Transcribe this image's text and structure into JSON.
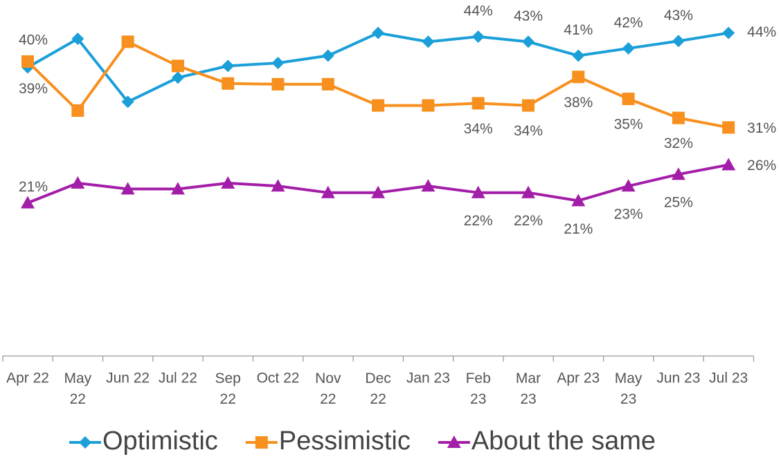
{
  "chart_data": {
    "type": "line",
    "categories": [
      "Apr 22",
      "May 22",
      "Jun 22",
      "Jul 22",
      "Sep 22",
      "Oct 22",
      "Nov 22",
      "Dec 22",
      "Jan 23",
      "Feb 23",
      "Mar 23",
      "Apr 23",
      "May 23",
      "Jun 23",
      "Jul 23"
    ],
    "ylim": [
      0,
      48.6
    ],
    "legend": "bottom",
    "series": [
      {
        "name": "Optimistic",
        "color": "#1b9fd8",
        "marker": "diamond",
        "values": [
          39.4,
          43.3,
          34.7,
          38.0,
          39.6,
          40.0,
          41.0,
          44.1,
          42.9,
          43.6,
          42.9,
          41.0,
          42.0,
          43.0,
          44.1
        ],
        "value_labels": [
          "39%",
          null,
          null,
          null,
          null,
          null,
          null,
          null,
          null,
          "44%",
          "43%",
          "41%",
          "42%",
          "43%",
          "44%"
        ]
      },
      {
        "name": "Pessimistic",
        "color": "#f7901e",
        "marker": "square",
        "values": [
          40.2,
          33.5,
          42.9,
          39.6,
          37.2,
          37.1,
          37.1,
          34.2,
          34.2,
          34.5,
          34.2,
          38.1,
          35.1,
          32.5,
          31.2
        ],
        "value_labels": [
          "40%",
          null,
          null,
          null,
          null,
          null,
          null,
          null,
          null,
          "34%",
          "34%",
          "38%",
          "35%",
          "32%",
          "31%"
        ]
      },
      {
        "name": "About the same",
        "color": "#a31ea8",
        "marker": "triangle",
        "values": [
          20.9,
          23.6,
          22.8,
          22.8,
          23.6,
          23.2,
          22.3,
          22.3,
          23.2,
          22.3,
          22.3,
          21.2,
          23.2,
          24.8,
          26.1
        ],
        "value_labels": [
          "21%",
          null,
          null,
          null,
          null,
          null,
          null,
          null,
          null,
          "22%",
          "22%",
          "21%",
          "23%",
          "25%",
          "26%"
        ]
      }
    ]
  }
}
